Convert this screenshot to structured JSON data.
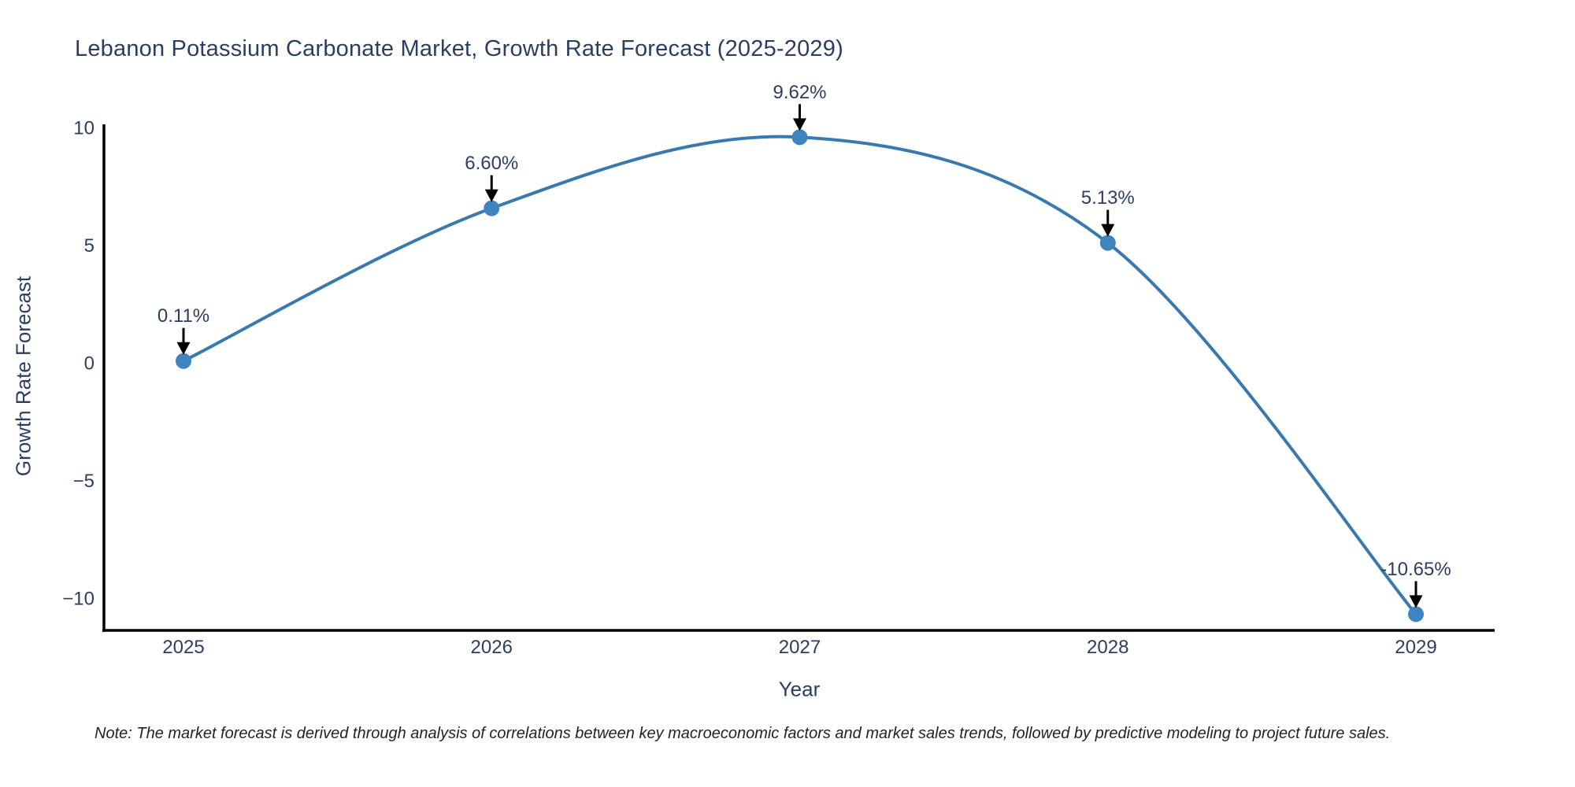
{
  "title": "Lebanon Potassium Carbonate Market, Growth Rate Forecast (2025-2029)",
  "note": "Note: The market forecast is derived through analysis of correlations between key macroeconomic factors and market sales trends, followed by predictive modeling to project future sales.",
  "chart_data": {
    "type": "line",
    "title": "Lebanon Potassium Carbonate Market, Growth Rate Forecast (2025-2029)",
    "xlabel": "Year",
    "ylabel": "Growth Rate Forecast",
    "categories": [
      "2025",
      "2026",
      "2027",
      "2028",
      "2029"
    ],
    "values": [
      0.11,
      6.6,
      9.62,
      5.13,
      -10.65
    ],
    "point_labels": [
      "0.11%",
      "6.60%",
      "9.62%",
      "5.13%",
      "-10.65%"
    ],
    "yticks": [
      10,
      5,
      0,
      -5,
      -10
    ],
    "ytick_labels": [
      "10",
      "5",
      "0",
      "−5",
      "−10"
    ],
    "ylim": [
      -11.4,
      10.5
    ],
    "grid": false,
    "line_shape": "spline",
    "legend": "none",
    "colors": {
      "line": "#3a79ae",
      "marker": "#3e84c1",
      "axis": "#000000",
      "tick_text": "#2a3f5f",
      "annotation_text": "#2a3f5f",
      "annotation_arrow": "#000000",
      "background": "#ffffff"
    }
  }
}
